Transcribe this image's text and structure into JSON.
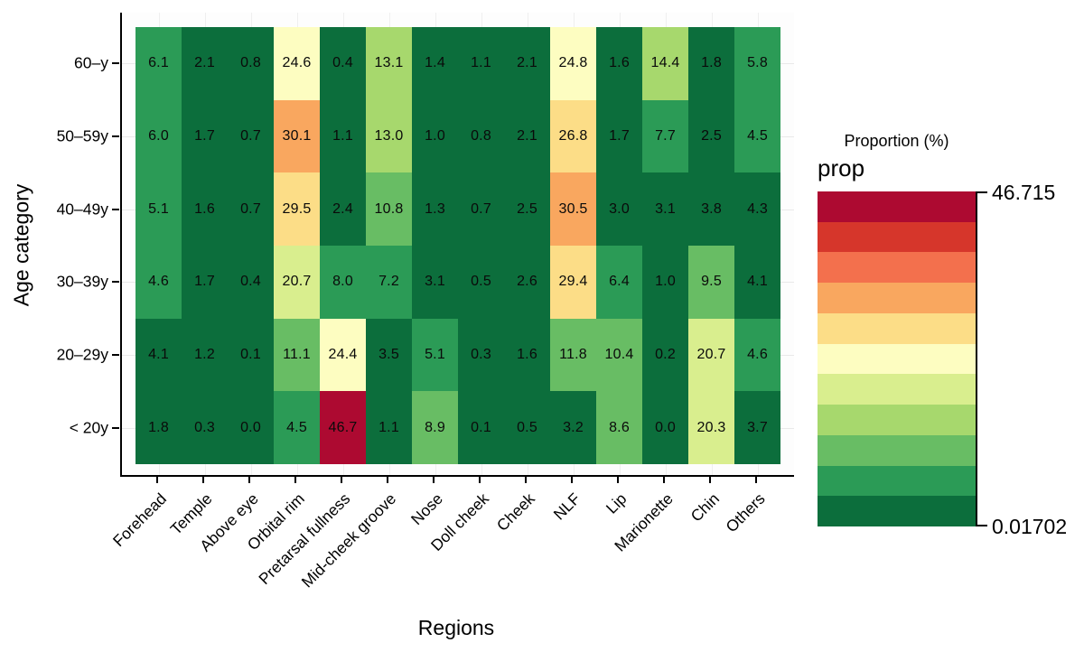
{
  "chart_data": {
    "type": "heatmap",
    "xlabel": "Regions",
    "ylabel": "Age category",
    "x_categories": [
      "Forehead",
      "Temple",
      "Above eye",
      "Orbital rim",
      "Pretarsal fullness",
      "Mid-cheek groove",
      "Nose",
      "Doll cheek",
      "Cheek",
      "NLF",
      "Lip",
      "Marionette",
      "Chin",
      "Others"
    ],
    "y_categories": [
      "60–y",
      "50–59y",
      "40–49y",
      "30–39y",
      "20–29y",
      "< 20y"
    ],
    "rows": [
      {
        "label": "60–y",
        "values": [
          "6.1",
          "2.1",
          "0.8",
          "24.6",
          "0.4",
          "13.1",
          "1.4",
          "1.1",
          "2.1",
          "24.8",
          "1.6",
          "14.4",
          "1.8",
          "5.8"
        ],
        "bins": [
          1,
          0,
          0,
          5,
          0,
          3,
          0,
          0,
          0,
          5,
          0,
          3,
          0,
          1
        ]
      },
      {
        "label": "50–59y",
        "values": [
          "6.0",
          "1.7",
          "0.7",
          "30.1",
          "1.1",
          "13.0",
          "1.0",
          "0.8",
          "2.1",
          "26.8",
          "1.7",
          "7.7",
          "2.5",
          "4.5"
        ],
        "bins": [
          1,
          0,
          0,
          7,
          0,
          3,
          0,
          0,
          0,
          6,
          0,
          1,
          0,
          1
        ]
      },
      {
        "label": "40–49y",
        "values": [
          "5.1",
          "1.6",
          "0.7",
          "29.5",
          "2.4",
          "10.8",
          "1.3",
          "0.7",
          "2.5",
          "30.5",
          "3.0",
          "3.1",
          "3.8",
          "4.3"
        ],
        "bins": [
          1,
          0,
          0,
          6,
          0,
          2,
          0,
          0,
          0,
          7,
          0,
          0,
          0,
          0
        ]
      },
      {
        "label": "30–39y",
        "values": [
          "4.6",
          "1.7",
          "0.4",
          "20.7",
          "8.0",
          "7.2",
          "3.1",
          "0.5",
          "2.6",
          "29.4",
          "6.4",
          "1.0",
          "9.5",
          "4.1"
        ],
        "bins": [
          1,
          0,
          0,
          4,
          1,
          1,
          0,
          0,
          0,
          6,
          1,
          0,
          2,
          0
        ]
      },
      {
        "label": "20–29y",
        "values": [
          "4.1",
          "1.2",
          "0.1",
          "11.1",
          "24.4",
          "3.5",
          "5.1",
          "0.3",
          "1.6",
          "11.8",
          "10.4",
          "0.2",
          "20.7",
          "4.6"
        ],
        "bins": [
          0,
          0,
          0,
          2,
          5,
          0,
          1,
          0,
          0,
          2,
          2,
          0,
          4,
          1
        ]
      },
      {
        "label": "< 20y",
        "values": [
          "1.8",
          "0.3",
          "0.0",
          "4.5",
          "46.7",
          "1.1",
          "8.9",
          "0.1",
          "0.5",
          "3.2",
          "8.6",
          "0.0",
          "20.3",
          "3.7"
        ],
        "bins": [
          0,
          0,
          0,
          1,
          10,
          0,
          2,
          0,
          0,
          0,
          2,
          0,
          4,
          0
        ]
      }
    ],
    "palette_low_to_high": [
      "#0c6e3c",
      "#2b9b56",
      "#68bd64",
      "#a7d86d",
      "#d9ee8e",
      "#fdfdc1",
      "#fcdd87",
      "#f9a75f",
      "#f3704d",
      "#d6362b",
      "#ad0a31"
    ],
    "value_range": [
      0.01702,
      46.715
    ],
    "grid": true,
    "legend": {
      "position": "right",
      "title": "Proportion (%)",
      "subtitle": "prop",
      "max_label": "46.715",
      "min_label": "0.01702"
    }
  }
}
